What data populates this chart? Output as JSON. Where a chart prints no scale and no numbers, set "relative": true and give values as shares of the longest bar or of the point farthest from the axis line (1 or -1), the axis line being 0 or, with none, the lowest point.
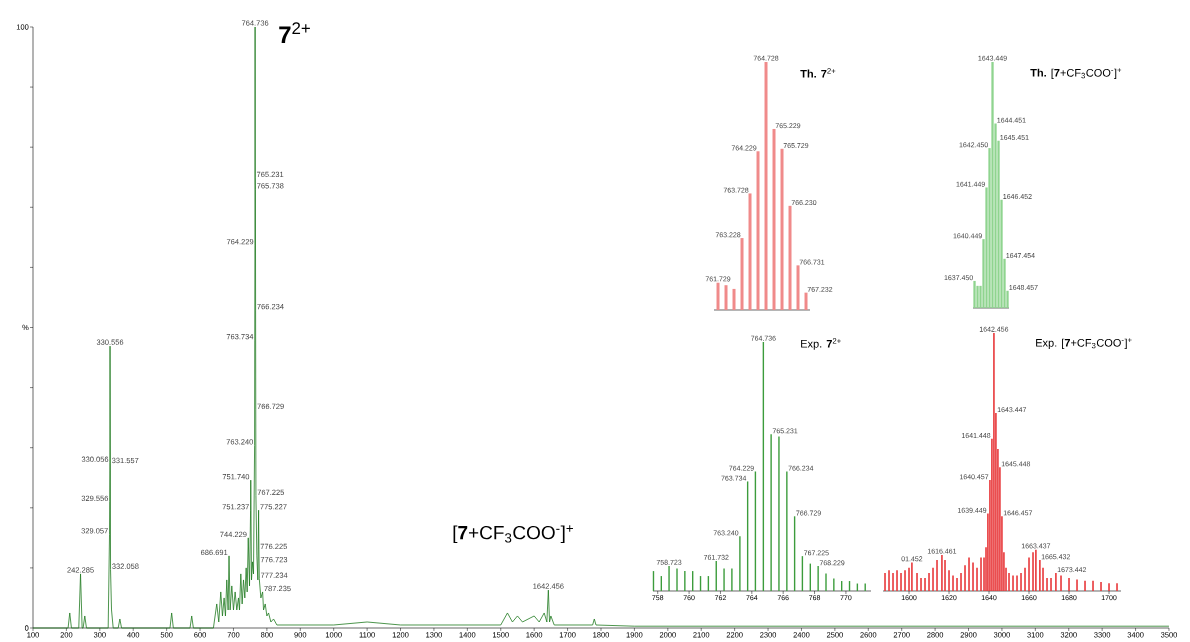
{
  "chart_data": [
    {
      "type": "line",
      "color": "#1f7a1f",
      "x": [
        100,
        205,
        210,
        215,
        237,
        242.285,
        247,
        250,
        255,
        260,
        325,
        329.057,
        329.556,
        330.056,
        330.556,
        331.557,
        332.058,
        335,
        340,
        355,
        360,
        365,
        510,
        515,
        520,
        570,
        575,
        580,
        640,
        650,
        656,
        662,
        667,
        672,
        676,
        680,
        684,
        686.691,
        690,
        695,
        700,
        705,
        710,
        715,
        718,
        722,
        726,
        730,
        734,
        738,
        741,
        744.229,
        748,
        751.237,
        751.74,
        754,
        757,
        760,
        763.24,
        763.734,
        764.229,
        764.736,
        765.231,
        765.738,
        766.234,
        766.729,
        767.225,
        770,
        773,
        775.227,
        776.225,
        776.723,
        777.234,
        782,
        787.235,
        790,
        795,
        800,
        805,
        812,
        820,
        830,
        900,
        1000,
        1100,
        1200,
        1300,
        1400,
        1500,
        1520,
        1535,
        1550,
        1565,
        1600,
        1615,
        1630,
        1638,
        1642.456,
        1646,
        1650,
        1660,
        1700,
        1775,
        1780,
        1785,
        1900,
        2000,
        3500
      ],
      "values": [
        0,
        0,
        2.5,
        0,
        0,
        9,
        0,
        0,
        2,
        0,
        0,
        15.6,
        21,
        27.5,
        46.9,
        27.3,
        9.7,
        3,
        0,
        0,
        1.5,
        0,
        0,
        2.5,
        0,
        0,
        2,
        0,
        0,
        4,
        1,
        6,
        2,
        5,
        2,
        8,
        3,
        12,
        3,
        7,
        3,
        6,
        3,
        5,
        3,
        9,
        4,
        8,
        5,
        10,
        6,
        15,
        7,
        19.6,
        24.6,
        8,
        11,
        9,
        30.4,
        47.9,
        63.7,
        100,
        74.9,
        73,
        52.9,
        36.3,
        22,
        12,
        8,
        19.6,
        13,
        10.8,
        8.2,
        5,
        6,
        3,
        4,
        2,
        2.5,
        1,
        1.5,
        0.5,
        0.5,
        0.5,
        1,
        0.5,
        0.5,
        0.5,
        0.5,
        2.5,
        1,
        2,
        1,
        2,
        1,
        2.5,
        1,
        6.3,
        1,
        2,
        0.5,
        0.5,
        0.5,
        1.5,
        0.5,
        0.3,
        0.3,
        0.3
      ],
      "xlim": [
        100,
        3500
      ],
      "ylim": [
        0,
        100
      ],
      "xticks": [
        100,
        200,
        300,
        400,
        500,
        600,
        700,
        800,
        900,
        1000,
        1100,
        1200,
        1300,
        1400,
        1500,
        1600,
        1700,
        1800,
        1900,
        2000,
        2100,
        2200,
        2300,
        2400,
        2500,
        2600,
        2700,
        2800,
        2900,
        3000,
        3100,
        3200,
        3300,
        3400,
        3500
      ],
      "yticks": [
        0,
        {
          "value": 10,
          "label": null
        },
        {
          "value": 20,
          "label": null
        },
        {
          "value": 30,
          "label": null
        },
        {
          "value": 40,
          "label": null
        },
        {
          "value": 50,
          "label": "%"
        },
        {
          "value": 60,
          "label": null
        },
        {
          "value": 70,
          "label": null
        },
        {
          "value": 80,
          "label": null
        },
        {
          "value": 90,
          "label": null
        },
        100
      ],
      "annotations": [
        "**7**$^{2+}$",
        "[**7**+CF$_{3}$COO$^{-}$]$^{+}$",
        {
          "text": "764.736",
          "x": 764.736,
          "y": 100
        },
        {
          "text": "765.231",
          "x": 765.231,
          "y": 74.9
        },
        {
          "text": "765.738",
          "x": 765.738,
          "y": 73
        },
        {
          "text": "764.229",
          "x": 764.229,
          "y": 63.7
        },
        {
          "text": "766.234",
          "x": 766.234,
          "y": 52.9
        },
        {
          "text": "763.734",
          "x": 763.734,
          "y": 47.9
        },
        {
          "text": "330.556",
          "x": 330.556,
          "y": 46.9
        },
        {
          "text": "766.729",
          "x": 766.729,
          "y": 36.3
        },
        {
          "text": "763.240",
          "x": 763.24,
          "y": 30.4
        },
        {
          "text": "330.056",
          "x": 330.056,
          "y": 27.5
        },
        {
          "text": "331.557",
          "x": 331.557,
          "y": 27.3
        },
        {
          "text": "751.740",
          "x": 751.74,
          "y": 24.6
        },
        {
          "text": "767.225",
          "x": 767.225,
          "y": 22
        },
        {
          "text": "329.556",
          "x": 329.556,
          "y": 21
        },
        {
          "text": "751.237",
          "x": 751.237,
          "y": 19.6
        },
        {
          "text": "775.227",
          "x": 775.227,
          "y": 19.6
        },
        {
          "text": "744.229",
          "x": 744.229,
          "y": 15
        },
        {
          "text": "329.057",
          "x": 329.057,
          "y": 15.6
        },
        {
          "text": "776.225",
          "x": 776.225,
          "y": 13
        },
        {
          "text": "776.723",
          "x": 776.723,
          "y": 10.8
        },
        {
          "text": "242.285",
          "x": 242.285,
          "y": 9
        },
        {
          "text": "332.058",
          "x": 332.058,
          "y": 9.7
        },
        {
          "text": "686.691",
          "x": 686.691,
          "y": 12
        },
        {
          "text": "777.234",
          "x": 777.234,
          "y": 8.2
        },
        {
          "text": "787.235",
          "x": 787.235,
          "y": 6
        },
        {
          "text": "1642.456",
          "x": 1642.456,
          "y": 6.3
        }
      ]
    },
    {
      "type": "bar",
      "relative": true,
      "color": "#f08a8a",
      "title": "**Th. 7**$^{2+}$",
      "tick_labels": false,
      "categories": [
        null,
        null,
        null,
        null,
        null,
        null,
        null,
        null,
        null,
        null,
        null,
        null
      ],
      "values": [
        0.11,
        0.1,
        0.085,
        0.29,
        0.47,
        0.64,
        1,
        0.73,
        0.65,
        0.42,
        0.18,
        0.07
      ],
      "annotations": [
        "761.729",
        "763.228",
        "763.728",
        "764.229",
        "764.728",
        "765.229",
        "765.729",
        "766.230",
        "766.731",
        "767.232"
      ]
    },
    {
      "type": "bar",
      "relative": true,
      "color": "#8fd48f",
      "title": "**Th.** [**7**+CF$_{3}$COO$^{-}$]$^{+}$",
      "tick_labels": false,
      "categories": [
        null,
        null,
        null,
        null,
        null,
        null,
        null,
        null,
        null,
        null,
        null,
        null
      ],
      "values": [
        0.11,
        0.09,
        0.09,
        0.28,
        0.49,
        0.65,
        1,
        0.75,
        0.68,
        0.44,
        0.2,
        0.07
      ],
      "annotations": [
        "1637.450",
        "1640.449",
        "1641.449",
        "1642.450",
        "1643.449",
        "1644.451",
        "1645.451",
        "1646.452",
        "1647.454",
        "1648.457"
      ]
    },
    {
      "type": "bar",
      "relative": true,
      "color": "#3c9c3c",
      "title": "Exp. **7**$^{2+}$",
      "tick_labels": "x",
      "x": [
        757.73,
        758.23,
        758.723,
        759.23,
        759.73,
        760.23,
        760.73,
        761.23,
        761.732,
        762.23,
        762.73,
        763.24,
        763.734,
        764.229,
        764.736,
        765.231,
        765.73,
        766.234,
        766.729,
        767.225,
        767.73,
        768.229,
        768.73,
        769.23,
        769.73,
        770.23,
        770.73,
        771.23
      ],
      "values": [
        0.08,
        0.06,
        0.1,
        0.09,
        0.08,
        0.08,
        0.06,
        0.06,
        0.12,
        0.09,
        0.09,
        0.22,
        0.44,
        0.48,
        1,
        0.63,
        0.62,
        0.48,
        0.3,
        0.14,
        0.11,
        0.1,
        0.07,
        0.05,
        0.04,
        0.04,
        0.03,
        0.03
      ],
      "xlim": [
        757.7,
        771.6
      ],
      "xticks": [
        758,
        760,
        762,
        764,
        766,
        768,
        770
      ],
      "annotations": [
        {
          "text": "764.736",
          "x": 764.736,
          "y": 1
        },
        {
          "text": "765.231",
          "x": 765.231,
          "y": 0.63
        },
        {
          "text": "764.229",
          "x": 764.229,
          "y": 0.48
        },
        {
          "text": "766.234",
          "x": 766.234,
          "y": 0.48
        },
        {
          "text": "763.734",
          "x": 763.734,
          "y": 0.44
        },
        {
          "text": "766.729",
          "x": 766.729,
          "y": 0.3
        },
        {
          "text": "763.240",
          "x": 763.24,
          "y": 0.22
        },
        {
          "text": "767.225",
          "x": 767.225,
          "y": 0.14
        },
        {
          "text": "761.732",
          "x": 761.732,
          "y": 0.12
        },
        {
          "text": "758.723",
          "x": 758.723,
          "y": 0.1
        },
        {
          "text": "768.229",
          "x": 768.229,
          "y": 0.1
        }
      ]
    },
    {
      "type": "bar",
      "relative": true,
      "color": "#e8383a",
      "title": "Exp. [**7**+CF$_{3}$COO$^{-}$]$^{+}$",
      "tick_labels": "x",
      "x": [
        1588,
        1590,
        1592,
        1594,
        1596,
        1598,
        1600,
        1601.452,
        1604,
        1606,
        1608,
        1610,
        1612,
        1614,
        1616.461,
        1618,
        1620,
        1622,
        1624,
        1626,
        1628,
        1630,
        1632,
        1634,
        1636,
        1637.5,
        1638.5,
        1639.449,
        1640.457,
        1641.448,
        1642.456,
        1643.447,
        1644.45,
        1645.448,
        1646.457,
        1647.45,
        1648.5,
        1650,
        1652,
        1654,
        1656,
        1658,
        1660,
        1662,
        1663.437,
        1665.432,
        1667,
        1669,
        1671,
        1673.442,
        1676,
        1680,
        1684,
        1688,
        1692,
        1696,
        1700,
        1704
      ],
      "values": [
        0.07,
        0.08,
        0.07,
        0.08,
        0.07,
        0.08,
        0.09,
        0.11,
        0.07,
        0.05,
        0.05,
        0.07,
        0.09,
        0.12,
        0.14,
        0.12,
        0.08,
        0.06,
        0.05,
        0.07,
        0.1,
        0.13,
        0.11,
        0.09,
        0.13,
        0.13,
        0.17,
        0.3,
        0.43,
        0.59,
        1,
        0.69,
        0.55,
        0.48,
        0.29,
        0.15,
        0.09,
        0.07,
        0.06,
        0.06,
        0.07,
        0.09,
        0.13,
        0.15,
        0.16,
        0.12,
        0.09,
        0.05,
        0.05,
        0.07,
        0.06,
        0.05,
        0.045,
        0.04,
        0.04,
        0.035,
        0.03,
        0.03
      ],
      "xlim": [
        1587,
        1706
      ],
      "xticks": [
        1600,
        1620,
        1640,
        1660,
        1680,
        1700
      ],
      "annotations": [
        {
          "text": "1642.456",
          "x": 1642.456,
          "y": 1
        },
        {
          "text": "1643.447",
          "x": 1643.447,
          "y": 0.69
        },
        {
          "text": "1641.448",
          "x": 1641.448,
          "y": 0.59
        },
        {
          "text": "1640.457",
          "x": 1640.457,
          "y": 0.43
        },
        {
          "text": "1645.448",
          "x": 1645.448,
          "y": 0.48
        },
        {
          "text": "1639.449",
          "x": 1639.449,
          "y": 0.3
        },
        {
          "text": "1646.457",
          "x": 1646.457,
          "y": 0.29
        },
        {
          "text": "1663.437",
          "x": 1663.437,
          "y": 0.16
        },
        {
          "text": "1665.432",
          "x": 1665.432,
          "y": 0.12
        },
        {
          "text": "1616.461",
          "x": 1616.461,
          "y": 0.14
        },
        {
          "text": "01.452",
          "x": 1601.452,
          "y": 0.11
        },
        {
          "text": "1673.442",
          "x": 1673.442,
          "y": 0.07
        }
      ]
    }
  ]
}
